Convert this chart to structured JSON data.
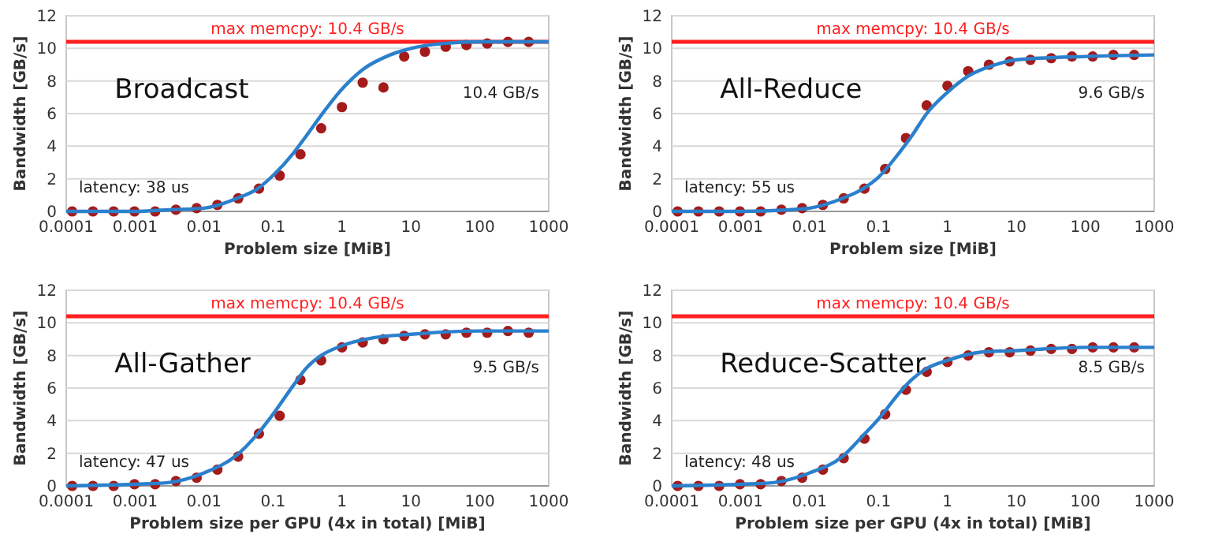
{
  "chart_data": [
    {
      "type": "scatter",
      "title": "Broadcast",
      "xlabel": "Problem size [MiB]",
      "ylabel": "Bandwidth [GB/s]",
      "log": "x",
      "grid": "y",
      "xlim": [
        0.0001,
        1000
      ],
      "xticks": [
        0.0001,
        0.001,
        0.01,
        0.1,
        1,
        10,
        100,
        1000
      ],
      "ylim": [
        0,
        12
      ],
      "yticks": [
        0,
        2,
        4,
        6,
        8,
        10,
        12
      ],
      "annotations": [
        "latency: 38 us",
        "10.4 GB/s"
      ],
      "ref_lines": [
        {
          "axis": "y",
          "value": 10.4,
          "label": "max memcpy: 10.4 GB/s",
          "color": "#ff2020"
        }
      ],
      "series": [
        {
          "marker": "circle",
          "color": "#a31b1b",
          "x": [
            0.000122,
            0.000244,
            0.000488,
            0.000977,
            0.00195,
            0.0039,
            0.0078,
            0.0156,
            0.03125,
            0.0625,
            0.125,
            0.25,
            0.5,
            1,
            2,
            4,
            8,
            16,
            32,
            64,
            128,
            256,
            512
          ],
          "values": [
            0,
            0,
            0,
            0,
            0,
            0.1,
            0.2,
            0.4,
            0.8,
            1.4,
            2.2,
            3.5,
            5.1,
            6.4,
            7.9,
            7.6,
            9.5,
            9.8,
            10.1,
            10.2,
            10.3,
            10.4,
            10.4
          ]
        },
        {
          "type": "line",
          "marker": "none",
          "color": "#2b80cc",
          "x": [
            0.0001,
            0.001,
            0.003,
            0.01,
            0.03,
            0.06,
            0.1,
            0.2,
            0.3,
            0.5,
            1,
            2,
            5,
            10,
            30,
            100,
            1000
          ],
          "values": [
            0,
            0,
            0.1,
            0.2,
            0.8,
            1.4,
            2.2,
            3.6,
            4.6,
            5.9,
            7.5,
            8.7,
            9.6,
            10.0,
            10.3,
            10.4,
            10.4
          ]
        }
      ]
    },
    {
      "type": "scatter",
      "title": "All-Reduce",
      "xlabel": "Problem size [MiB]",
      "ylabel": "Bandwidth [GB/s]",
      "log": "x",
      "grid": "y",
      "xlim": [
        0.0001,
        1000
      ],
      "xticks": [
        0.0001,
        0.001,
        0.01,
        0.1,
        1,
        10,
        100,
        1000
      ],
      "ylim": [
        0,
        12
      ],
      "yticks": [
        0,
        2,
        4,
        6,
        8,
        10,
        12
      ],
      "annotations": [
        "latency: 55 us",
        "9.6 GB/s"
      ],
      "ref_lines": [
        {
          "axis": "y",
          "value": 10.4,
          "label": "max memcpy: 10.4 GB/s",
          "color": "#ff2020"
        }
      ],
      "series": [
        {
          "marker": "circle",
          "color": "#a31b1b",
          "x": [
            0.000122,
            0.000244,
            0.000488,
            0.000977,
            0.00195,
            0.0039,
            0.0078,
            0.0156,
            0.03125,
            0.0625,
            0.125,
            0.25,
            0.5,
            1,
            2,
            4,
            8,
            16,
            32,
            64,
            128,
            256,
            512
          ],
          "values": [
            0,
            0,
            0,
            0,
            0,
            0.1,
            0.2,
            0.4,
            0.8,
            1.4,
            2.6,
            4.5,
            6.5,
            7.7,
            8.6,
            9.0,
            9.2,
            9.3,
            9.4,
            9.5,
            9.5,
            9.6,
            9.6
          ]
        },
        {
          "type": "line",
          "marker": "none",
          "color": "#2b80cc",
          "x": [
            0.0001,
            0.001,
            0.005,
            0.01,
            0.03,
            0.06,
            0.1,
            0.2,
            0.3,
            0.5,
            1,
            2,
            5,
            10,
            100,
            1000
          ],
          "values": [
            0,
            0,
            0.1,
            0.2,
            0.8,
            1.4,
            2.1,
            3.6,
            4.6,
            6.0,
            7.3,
            8.3,
            9.0,
            9.3,
            9.5,
            9.6
          ]
        }
      ]
    },
    {
      "type": "scatter",
      "title": "All-Gather",
      "xlabel": "Problem size per GPU (4x in total) [MiB]",
      "ylabel": "Bandwidth [GB/s]",
      "log": "x",
      "grid": "y",
      "xlim": [
        0.0001,
        1000
      ],
      "xticks": [
        0.0001,
        0.001,
        0.01,
        0.1,
        1,
        10,
        100,
        1000
      ],
      "ylim": [
        0,
        12
      ],
      "yticks": [
        0,
        2,
        4,
        6,
        8,
        10,
        12
      ],
      "annotations": [
        "latency: 47 us",
        "9.5 GB/s"
      ],
      "ref_lines": [
        {
          "axis": "y",
          "value": 10.4,
          "label": "max memcpy: 10.4 GB/s",
          "color": "#ff2020"
        }
      ],
      "series": [
        {
          "marker": "circle",
          "color": "#a31b1b",
          "x": [
            0.000122,
            0.000244,
            0.000488,
            0.000977,
            0.00195,
            0.0039,
            0.0078,
            0.0156,
            0.03125,
            0.0625,
            0.125,
            0.25,
            0.5,
            1,
            2,
            4,
            8,
            16,
            32,
            64,
            128,
            256,
            512
          ],
          "values": [
            0,
            0,
            0,
            0.1,
            0.1,
            0.3,
            0.5,
            1.0,
            1.8,
            3.2,
            4.3,
            6.5,
            7.7,
            8.5,
            8.8,
            9.0,
            9.2,
            9.3,
            9.3,
            9.4,
            9.4,
            9.5,
            9.4
          ]
        },
        {
          "type": "line",
          "marker": "none",
          "color": "#2b80cc",
          "x": [
            0.0001,
            0.001,
            0.003,
            0.01,
            0.03,
            0.06,
            0.1,
            0.2,
            0.3,
            0.5,
            1,
            3,
            10,
            100,
            1000
          ],
          "values": [
            0,
            0.1,
            0.2,
            0.8,
            1.9,
            3.2,
            4.4,
            6.2,
            7.2,
            8.0,
            8.6,
            9.1,
            9.3,
            9.5,
            9.5
          ]
        }
      ]
    },
    {
      "type": "scatter",
      "title": "Reduce-Scatter",
      "xlabel": "Problem size per GPU (4x in total) [MiB]",
      "ylabel": "Bandwidth [GB/s]",
      "log": "x",
      "grid": "y",
      "xlim": [
        0.0001,
        1000
      ],
      "xticks": [
        0.0001,
        0.001,
        0.01,
        0.1,
        1,
        10,
        100,
        1000
      ],
      "ylim": [
        0,
        12
      ],
      "yticks": [
        0,
        2,
        4,
        6,
        8,
        10,
        12
      ],
      "annotations": [
        "latency: 48 us",
        "8.5 GB/s"
      ],
      "ref_lines": [
        {
          "axis": "y",
          "value": 10.4,
          "label": "max memcpy: 10.4 GB/s",
          "color": "#ff2020"
        }
      ],
      "series": [
        {
          "marker": "circle",
          "color": "#a31b1b",
          "x": [
            0.000122,
            0.000244,
            0.000488,
            0.000977,
            0.00195,
            0.0039,
            0.0078,
            0.0156,
            0.03125,
            0.0625,
            0.125,
            0.25,
            0.5,
            1,
            2,
            4,
            8,
            16,
            32,
            64,
            128,
            256,
            512
          ],
          "values": [
            0,
            0,
            0,
            0.1,
            0.1,
            0.3,
            0.5,
            1.0,
            1.7,
            2.9,
            4.4,
            5.9,
            7.0,
            7.6,
            8.0,
            8.2,
            8.2,
            8.3,
            8.4,
            8.4,
            8.5,
            8.5,
            8.5
          ]
        },
        {
          "type": "line",
          "marker": "none",
          "color": "#2b80cc",
          "x": [
            0.0001,
            0.001,
            0.003,
            0.01,
            0.03,
            0.06,
            0.1,
            0.2,
            0.3,
            0.5,
            1,
            3,
            10,
            100,
            1000
          ],
          "values": [
            0,
            0.1,
            0.2,
            0.8,
            1.8,
            3.1,
            4.1,
            5.7,
            6.5,
            7.2,
            7.7,
            8.2,
            8.3,
            8.5,
            8.5
          ]
        }
      ]
    }
  ]
}
